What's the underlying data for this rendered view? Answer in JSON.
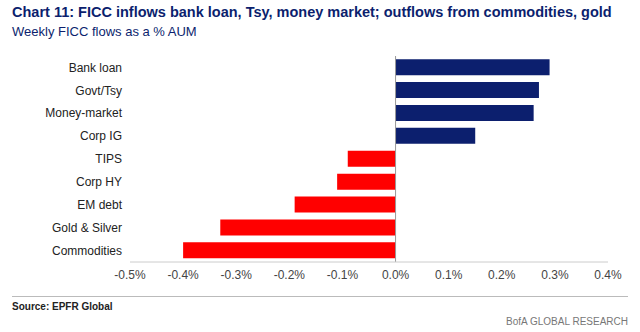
{
  "chart_data": {
    "type": "bar",
    "title": "Chart 11: FICC inflows bank loan, Tsy, money market; outflows from commodities, gold",
    "subtitle": "Weekly FICC flows as a % AUM",
    "annotations": [
      "Source: EPFR Global",
      "BofA GLOBAL RESEARCH"
    ],
    "orientation": "horizontal",
    "categories": [
      "Bank loan",
      "Govt/Tsy",
      "Money-market",
      "Corp IG",
      "TIPS",
      "Corp HY",
      "EM debt",
      "Gold & Silver",
      "Commodities"
    ],
    "values": [
      0.29,
      0.27,
      0.26,
      0.15,
      -0.09,
      -0.11,
      -0.19,
      -0.33,
      -0.4
    ],
    "colors": [
      "#0c1f6e",
      "#0c1f6e",
      "#0c1f6e",
      "#0c1f6e",
      "#ff0000",
      "#ff0000",
      "#ff0000",
      "#ff0000",
      "#ff0000"
    ],
    "xlim": [
      -0.5,
      0.4
    ],
    "xticks": [
      {
        "value": -0.5,
        "label": "-0.5%"
      },
      {
        "value": -0.4,
        "label": "-0.4%"
      },
      {
        "value": -0.3,
        "label": "-0.3%"
      },
      {
        "value": -0.2,
        "label": "-0.2%"
      },
      {
        "value": -0.1,
        "label": "-0.1%"
      },
      {
        "value": 0,
        "label": "0.0%"
      },
      {
        "value": 0.1,
        "label": "0.1%"
      },
      {
        "value": 0.2,
        "label": "0.2%"
      },
      {
        "value": 0.3,
        "label": "0.3%"
      },
      {
        "value": 0.4,
        "label": "0.4%"
      }
    ],
    "grid": false
  }
}
